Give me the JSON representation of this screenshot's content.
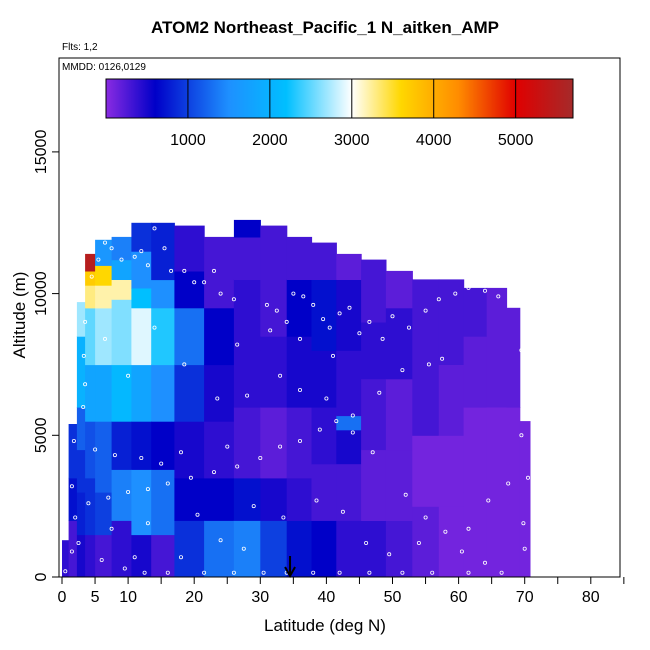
{
  "chart_data": {
    "type": "heatmap",
    "title": "ATOM2 Northeast_Pacific_1 N_aitken_AMP",
    "flights_note": "Flts: 1,2",
    "dates_note": "MMDD: 0126,0129",
    "xlabel": "Latitude (deg N)",
    "ylabel": "Altitude (m)",
    "xlim": [
      0,
      85
    ],
    "ylim": [
      0,
      18000
    ],
    "x_ticks": [
      0,
      5,
      10,
      20,
      30,
      40,
      50,
      60,
      70,
      80
    ],
    "x_tick_labels": [
      "0",
      "5",
      "10",
      "20",
      "30",
      "40",
      "50",
      "60",
      "70",
      "80"
    ],
    "y_ticks": [
      0,
      5000,
      10000,
      15000
    ],
    "y_tick_labels": [
      "0",
      "5000",
      "10000",
      "15000"
    ],
    "colorbar": {
      "range": [
        0,
        5700
      ],
      "ticks": [
        1000,
        2000,
        3000,
        4000,
        5000
      ],
      "tick_labels": [
        "1000",
        "2000",
        "3000",
        "4000",
        "5000"
      ],
      "stops": [
        {
          "v": 0,
          "c": "#8a2be2"
        },
        {
          "v": 600,
          "c": "#0000c8"
        },
        {
          "v": 1500,
          "c": "#1e90ff"
        },
        {
          "v": 2200,
          "c": "#00bfff"
        },
        {
          "v": 3000,
          "c": "#ffffff"
        },
        {
          "v": 3600,
          "c": "#ffd700"
        },
        {
          "v": 4300,
          "c": "#ff8c00"
        },
        {
          "v": 5000,
          "c": "#e00000"
        },
        {
          "v": 5700,
          "c": "#a52a2a"
        }
      ]
    },
    "marker": {
      "latitude": 34.5,
      "label": "arrow"
    },
    "profiles": [
      {
        "lat": 0.5,
        "top": 1300,
        "rows": [
          [
            0,
            1300,
            400
          ]
        ]
      },
      {
        "lat": 1.5,
        "top": 5400,
        "rows": [
          [
            0,
            2000,
            300
          ],
          [
            2000,
            3500,
            700
          ],
          [
            3500,
            5400,
            900
          ]
        ]
      },
      {
        "lat": 3,
        "top": 9700,
        "rows": [
          [
            0,
            1500,
            500
          ],
          [
            1500,
            3000,
            800
          ],
          [
            3000,
            4500,
            900
          ],
          [
            4500,
            6000,
            1200
          ],
          [
            6000,
            8500,
            2000
          ],
          [
            8500,
            9700,
            2700
          ]
        ]
      },
      {
        "lat": 4,
        "top": 11400,
        "rows": [
          [
            0,
            1500,
            400
          ],
          [
            1500,
            3500,
            900
          ],
          [
            3500,
            5500,
            1100
          ],
          [
            5500,
            7500,
            1800
          ],
          [
            7500,
            9500,
            2500
          ],
          [
            9500,
            10300,
            3300
          ],
          [
            10300,
            10800,
            3700
          ],
          [
            10800,
            11400,
            5500
          ]
        ]
      },
      {
        "lat": 6,
        "top": 11900,
        "rows": [
          [
            0,
            1500,
            300
          ],
          [
            1500,
            3000,
            1000
          ],
          [
            3000,
            5500,
            1200
          ],
          [
            5500,
            7500,
            1800
          ],
          [
            7500,
            9500,
            2700
          ],
          [
            9500,
            10300,
            3200
          ],
          [
            10300,
            11000,
            3600
          ],
          [
            11000,
            11900,
            1600
          ]
        ]
      },
      {
        "lat": 9,
        "top": 12000,
        "rows": [
          [
            0,
            2000,
            400
          ],
          [
            2000,
            3800,
            1400
          ],
          [
            3800,
            5500,
            800
          ],
          [
            5500,
            7500,
            2100
          ],
          [
            7500,
            9800,
            2600
          ],
          [
            9800,
            10500,
            3200
          ],
          [
            10500,
            11200,
            1800
          ],
          [
            11200,
            12000,
            1400
          ]
        ]
      },
      {
        "lat": 12,
        "top": 12500,
        "rows": [
          [
            0,
            1500,
            500
          ],
          [
            1500,
            3800,
            1500
          ],
          [
            3800,
            5500,
            700
          ],
          [
            5500,
            7500,
            1800
          ],
          [
            7500,
            9500,
            2900
          ],
          [
            9500,
            10200,
            2200
          ],
          [
            10200,
            11500,
            1500
          ],
          [
            11500,
            12500,
            900
          ]
        ]
      },
      {
        "lat": 15,
        "top": 12500,
        "rows": [
          [
            0,
            1500,
            300
          ],
          [
            1500,
            3800,
            1300
          ],
          [
            3800,
            5500,
            600
          ],
          [
            5500,
            7500,
            1500
          ],
          [
            7500,
            9500,
            2300
          ],
          [
            9500,
            10500,
            1500
          ],
          [
            10500,
            12500,
            800
          ]
        ]
      },
      {
        "lat": 19,
        "top": 12400,
        "rows": [
          [
            0,
            2000,
            900
          ],
          [
            2000,
            3500,
            600
          ],
          [
            3500,
            5500,
            500
          ],
          [
            5500,
            7500,
            900
          ],
          [
            7500,
            9500,
            1300
          ],
          [
            9500,
            10800,
            600
          ],
          [
            10800,
            12400,
            400
          ]
        ]
      },
      {
        "lat": 24,
        "top": 12000,
        "rows": [
          [
            0,
            2000,
            1300
          ],
          [
            2000,
            3500,
            600
          ],
          [
            3500,
            5500,
            400
          ],
          [
            5500,
            7500,
            500
          ],
          [
            7500,
            9500,
            600
          ],
          [
            9500,
            12000,
            300
          ]
        ]
      },
      {
        "lat": 28,
        "top": 12600,
        "rows": [
          [
            0,
            2000,
            1400
          ],
          [
            2000,
            3500,
            700
          ],
          [
            3500,
            6000,
            300
          ],
          [
            6000,
            8000,
            400
          ],
          [
            8000,
            10500,
            400
          ],
          [
            10500,
            12000,
            300
          ],
          [
            12000,
            12600,
            600
          ]
        ]
      },
      {
        "lat": 32,
        "top": 12400,
        "rows": [
          [
            0,
            2000,
            1000
          ],
          [
            2000,
            3500,
            500
          ],
          [
            3500,
            6000,
            200
          ],
          [
            6000,
            8500,
            400
          ],
          [
            8500,
            12400,
            300
          ]
        ]
      },
      {
        "lat": 36,
        "top": 12000,
        "rows": [
          [
            0,
            2000,
            700
          ],
          [
            2000,
            3500,
            400
          ],
          [
            3500,
            6000,
            300
          ],
          [
            6000,
            8500,
            500
          ],
          [
            8500,
            10500,
            600
          ],
          [
            10500,
            12000,
            300
          ]
        ]
      },
      {
        "lat": 39.5,
        "top": 11800,
        "rows": [
          [
            0,
            2000,
            600
          ],
          [
            2000,
            4000,
            300
          ],
          [
            4000,
            6000,
            400
          ],
          [
            6000,
            8000,
            500
          ],
          [
            8000,
            10500,
            700
          ],
          [
            10500,
            11800,
            300
          ]
        ]
      },
      {
        "lat": 43.5,
        "top": 11400,
        "rows": [
          [
            0,
            2000,
            400
          ],
          [
            2000,
            4000,
            300
          ],
          [
            4000,
            5200,
            500
          ],
          [
            5200,
            5700,
            1300
          ],
          [
            5700,
            8000,
            400
          ],
          [
            8000,
            10500,
            500
          ],
          [
            10500,
            11400,
            200
          ]
        ]
      },
      {
        "lat": 47,
        "top": 11200,
        "rows": [
          [
            0,
            2000,
            400
          ],
          [
            2000,
            4500,
            200
          ],
          [
            4500,
            7000,
            300
          ],
          [
            7000,
            9000,
            400
          ],
          [
            9000,
            11200,
            300
          ]
        ]
      },
      {
        "lat": 51,
        "top": 10800,
        "rows": [
          [
            0,
            2000,
            300
          ],
          [
            2000,
            4500,
            200
          ],
          [
            4500,
            7000,
            200
          ],
          [
            7000,
            9500,
            400
          ],
          [
            9500,
            10800,
            200
          ]
        ]
      },
      {
        "lat": 55,
        "top": 10500,
        "rows": [
          [
            0,
            2500,
            200
          ],
          [
            2500,
            5000,
            100
          ],
          [
            5000,
            7500,
            300
          ],
          [
            7500,
            10500,
            300
          ]
        ]
      },
      {
        "lat": 59,
        "top": 10500,
        "rows": [
          [
            0,
            2500,
            100
          ],
          [
            2500,
            5000,
            100
          ],
          [
            5000,
            7500,
            200
          ],
          [
            7500,
            10500,
            300
          ]
        ]
      },
      {
        "lat": 62.5,
        "top": 10200,
        "rows": [
          [
            0,
            3000,
            100
          ],
          [
            3000,
            6000,
            100
          ],
          [
            6000,
            8500,
            200
          ],
          [
            8500,
            10200,
            300
          ]
        ]
      },
      {
        "lat": 66,
        "top": 10200,
        "rows": [
          [
            0,
            3000,
            100
          ],
          [
            3000,
            6000,
            100
          ],
          [
            6000,
            10200,
            200
          ]
        ]
      },
      {
        "lat": 68.5,
        "top": 9500,
        "rows": [
          [
            0,
            3000,
            100
          ],
          [
            3000,
            6000,
            100
          ],
          [
            6000,
            9500,
            200
          ]
        ]
      },
      {
        "lat": 70,
        "top": 5500,
        "rows": [
          [
            0,
            3000,
            100
          ],
          [
            3000,
            5500,
            100
          ]
        ]
      }
    ],
    "samples": [
      [
        0.5,
        200
      ],
      [
        1.5,
        900
      ],
      [
        1.5,
        3200
      ],
      [
        1.8,
        4800
      ],
      [
        3.2,
        6000
      ],
      [
        3.3,
        7800
      ],
      [
        3.5,
        9000
      ],
      [
        4.5,
        10600
      ],
      [
        5.5,
        11200
      ],
      [
        6.5,
        11800
      ],
      [
        7.5,
        11600
      ],
      [
        9,
        11200
      ],
      [
        11,
        11300
      ],
      [
        12,
        11500
      ],
      [
        13,
        11000
      ],
      [
        14,
        12300
      ],
      [
        15.5,
        11600
      ],
      [
        16.5,
        10800
      ],
      [
        18.5,
        10800
      ],
      [
        20,
        10400
      ],
      [
        21.5,
        10400
      ],
      [
        23,
        10800
      ],
      [
        24,
        10000
      ],
      [
        26,
        9800
      ],
      [
        27,
        12800
      ],
      [
        28.5,
        12700
      ],
      [
        30.5,
        12600
      ],
      [
        31,
        9600
      ],
      [
        32.5,
        9400
      ],
      [
        34,
        9000
      ],
      [
        35,
        10000
      ],
      [
        36.5,
        9900
      ],
      [
        38,
        9600
      ],
      [
        39.5,
        9100
      ],
      [
        40.5,
        8800
      ],
      [
        42,
        9300
      ],
      [
        43.5,
        9500
      ],
      [
        45,
        8600
      ],
      [
        46.5,
        9000
      ],
      [
        48.5,
        8400
      ],
      [
        50,
        9200
      ],
      [
        52.5,
        8800
      ],
      [
        55,
        9400
      ],
      [
        57,
        9800
      ],
      [
        59.5,
        10000
      ],
      [
        61.5,
        10200
      ],
      [
        64,
        10100
      ],
      [
        66,
        9900
      ],
      [
        68,
        10000
      ],
      [
        69.5,
        8000
      ],
      [
        70,
        6500
      ],
      [
        69.5,
        5000
      ],
      [
        70.5,
        3500
      ],
      [
        69.8,
        1900
      ],
      [
        70,
        1000
      ],
      [
        57.5,
        7700
      ],
      [
        55.5,
        7500
      ],
      [
        51.5,
        7300
      ],
      [
        48,
        6500
      ],
      [
        44,
        5700
      ],
      [
        41.5,
        5500
      ],
      [
        39,
        5200
      ],
      [
        36,
        4800
      ],
      [
        33,
        4600
      ],
      [
        30,
        4200
      ],
      [
        26.5,
        3900
      ],
      [
        23,
        3700
      ],
      [
        19.5,
        3500
      ],
      [
        16,
        3300
      ],
      [
        13,
        3100
      ],
      [
        10,
        3000
      ],
      [
        7,
        2800
      ],
      [
        4,
        2600
      ],
      [
        2,
        2100
      ],
      [
        2.5,
        1200
      ],
      [
        6,
        600
      ],
      [
        9.5,
        300
      ],
      [
        12.5,
        150
      ],
      [
        16,
        150
      ],
      [
        21.5,
        150
      ],
      [
        26,
        150
      ],
      [
        30.5,
        150
      ],
      [
        34,
        150
      ],
      [
        38,
        150
      ],
      [
        42,
        150
      ],
      [
        46.5,
        150
      ],
      [
        51.5,
        150
      ],
      [
        56,
        150
      ],
      [
        61.5,
        150
      ],
      [
        66.5,
        150
      ],
      [
        5,
        4500
      ],
      [
        8,
        4300
      ],
      [
        12,
        4200
      ],
      [
        15,
        4000
      ],
      [
        18,
        4400
      ],
      [
        25,
        4600
      ],
      [
        28,
        6400
      ],
      [
        33,
        7100
      ],
      [
        36,
        6600
      ],
      [
        40,
        6300
      ],
      [
        44,
        5100
      ],
      [
        47,
        4400
      ],
      [
        52,
        2900
      ],
      [
        55,
        2100
      ],
      [
        58,
        1600
      ],
      [
        61.5,
        1700
      ],
      [
        64.5,
        2700
      ],
      [
        67.5,
        3300
      ],
      [
        24,
        1300
      ],
      [
        27.5,
        1000
      ],
      [
        20.5,
        2200
      ],
      [
        13,
        1900
      ],
      [
        7.5,
        1700
      ],
      [
        11,
        700
      ],
      [
        18,
        700
      ],
      [
        29,
        2500
      ],
      [
        33.5,
        2100
      ],
      [
        38.5,
        2700
      ],
      [
        42.5,
        2300
      ],
      [
        46,
        1200
      ],
      [
        49.5,
        800
      ],
      [
        54,
        1200
      ],
      [
        60.5,
        900
      ],
      [
        64,
        500
      ],
      [
        14,
        8800
      ],
      [
        18.5,
        7500
      ],
      [
        23.5,
        6300
      ],
      [
        10,
        7100
      ],
      [
        6.5,
        8400
      ],
      [
        3.5,
        6800
      ],
      [
        26.5,
        8200
      ],
      [
        31.5,
        8700
      ],
      [
        36,
        8400
      ],
      [
        41,
        7800
      ]
    ]
  }
}
